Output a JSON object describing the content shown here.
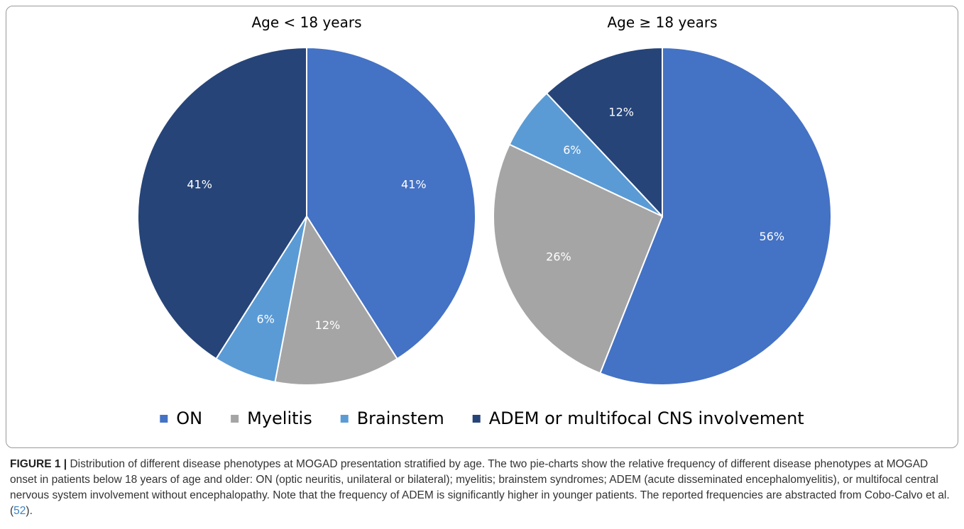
{
  "chart_data": [
    {
      "type": "pie",
      "title": "Age < 18 years",
      "categories": [
        "ON",
        "Myelitis",
        "Brainstem",
        "ADEM or multifocal CNS involvement"
      ],
      "values": [
        41,
        12,
        6,
        41
      ],
      "value_labels": [
        "41%",
        "12%",
        "6%",
        "41%"
      ],
      "colors": [
        "#4472c4",
        "#a5a5a5",
        "#5b9bd5",
        "#264478"
      ]
    },
    {
      "type": "pie",
      "title": "Age ≥ 18 years",
      "categories": [
        "ON",
        "Myelitis",
        "Brainstem",
        "ADEM or multifocal CNS involvement"
      ],
      "values": [
        56,
        26,
        6,
        12
      ],
      "value_labels": [
        "56%",
        "26%",
        "6%",
        "12%"
      ],
      "colors": [
        "#4472c4",
        "#a5a5a5",
        "#5b9bd5",
        "#264478"
      ]
    }
  ],
  "caption": {
    "label": "FIGURE 1 |",
    "text_before": "Distribution of different disease phenotypes at MOGAD presentation stratified by age. The two pie-charts show the relative frequency of different disease phenotypes at MOGAD onset in patients below 18 years of age and older: ON (optic neuritis, unilateral or bilateral); myelitis; brainstem syndromes; ADEM (acute disseminated encephalomyelitis), or multifocal central nervous system involvement without encephalopathy. Note that the frequency of ADEM is significantly higher in younger patients. The reported frequencies are abstracted from Cobo-Calvo et al. (",
    "ref": "52",
    "text_after": ")."
  }
}
